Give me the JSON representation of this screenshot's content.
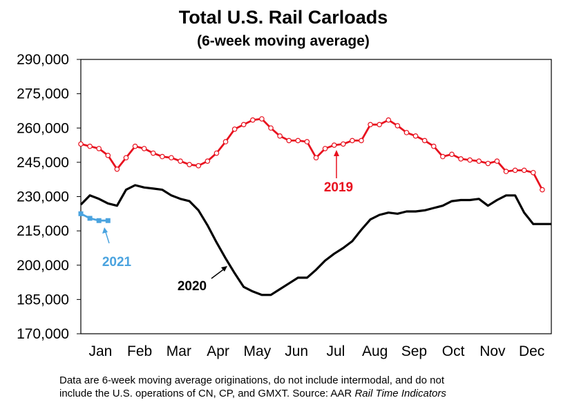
{
  "chart_data": {
    "type": "line",
    "title": "Total U.S. Rail Carloads",
    "subtitle": "(6-week moving average)",
    "xlabel": "",
    "ylabel": "",
    "ylim": [
      170000,
      290000
    ],
    "yticks": [
      "290,000",
      "275,000",
      "260,000",
      "245,000",
      "230,000",
      "215,000",
      "200,000",
      "185,000",
      "170,000"
    ],
    "ytick_values": [
      290000,
      275000,
      260000,
      245000,
      230000,
      215000,
      200000,
      185000,
      170000
    ],
    "months": [
      "Jan",
      "Feb",
      "Mar",
      "Apr",
      "May",
      "Jun",
      "Jul",
      "Aug",
      "Sep",
      "Oct",
      "Nov",
      "Dec"
    ],
    "x_unit": "week of year",
    "xlim": [
      1,
      53
    ],
    "grid": false,
    "legend": "none",
    "series": [
      {
        "name": "2019",
        "color": "#e8101e",
        "marker": "open-circle",
        "x": [
          1,
          2,
          3,
          4,
          5,
          6,
          7,
          8,
          9,
          10,
          11,
          12,
          13,
          14,
          15,
          16,
          17,
          18,
          19,
          20,
          21,
          22,
          23,
          24,
          25,
          26,
          27,
          28,
          29,
          30,
          31,
          32,
          33,
          34,
          35,
          36,
          37,
          38,
          39,
          40,
          41,
          42,
          43,
          44,
          45,
          46,
          47,
          48,
          49,
          50,
          51,
          52
        ],
        "values": [
          253000,
          252000,
          251000,
          248000,
          242000,
          247000,
          252000,
          251000,
          249000,
          247500,
          247000,
          245500,
          244000,
          243500,
          245500,
          249000,
          254000,
          259500,
          261500,
          263500,
          264000,
          260000,
          256500,
          254500,
          254500,
          254000,
          247000,
          251000,
          252500,
          253000,
          254500,
          254500,
          261500,
          261500,
          263500,
          261000,
          258000,
          256500,
          254500,
          252000,
          247500,
          248500,
          246500,
          246000,
          245500,
          244500,
          245500,
          241000,
          241500,
          241500,
          240500,
          233000
        ]
      },
      {
        "name": "2020",
        "color": "#000000",
        "marker": "none",
        "x": [
          1,
          2,
          3,
          4,
          5,
          6,
          7,
          8,
          9,
          10,
          11,
          12,
          13,
          14,
          15,
          16,
          17,
          18,
          19,
          20,
          21,
          22,
          23,
          24,
          25,
          26,
          27,
          28,
          29,
          30,
          31,
          32,
          33,
          34,
          35,
          36,
          37,
          38,
          39,
          40,
          41,
          42,
          43,
          44,
          45,
          46,
          47,
          48,
          49,
          50,
          51,
          52,
          53
        ],
        "values": [
          226500,
          230500,
          229000,
          227000,
          226000,
          233000,
          235000,
          234000,
          233500,
          233000,
          230500,
          229000,
          228000,
          224000,
          217500,
          210000,
          203000,
          196500,
          190500,
          188500,
          187000,
          187000,
          189500,
          192000,
          194500,
          194500,
          198000,
          202000,
          205000,
          207500,
          210500,
          215500,
          220000,
          222000,
          223000,
          222500,
          223500,
          223500,
          224000,
          225000,
          226000,
          228000,
          228500,
          228500,
          229000,
          226000,
          228500,
          230500,
          230500,
          223000,
          218000,
          218000,
          218000
        ]
      },
      {
        "name": "2021",
        "color": "#4aa3df",
        "marker": "filled-square",
        "x": [
          1,
          2,
          3,
          4
        ],
        "values": [
          222500,
          220500,
          219500,
          219500
        ]
      }
    ],
    "annotations": [
      {
        "text": "2019",
        "color": "#e8101e"
      },
      {
        "text": "2020",
        "color": "#000000"
      },
      {
        "text": "2021",
        "color": "#4aa3df"
      }
    ]
  },
  "footnote": {
    "line1": "Data are 6-week moving average originations, do not include intermodal, and do not",
    "line2_plain": "include the U.S. operations of CN, CP, and GMXT.   Source: AAR ",
    "line2_italic": "Rail Time Indicators"
  }
}
